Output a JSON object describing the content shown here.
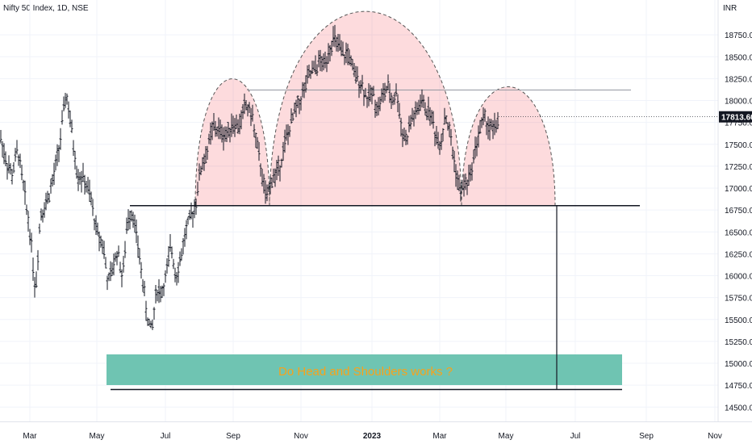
{
  "header": {
    "symbol_title": "Nifty 50 Index, 1D, NSE",
    "currency": "INR"
  },
  "last_price_label": "17813.60",
  "banner": {
    "text": "Do Head and Shoulders works ?"
  },
  "chart_data": {
    "type": "ohlc",
    "y_ticks": [
      14500,
      14750,
      15000,
      15250,
      15500,
      15750,
      16000,
      16250,
      16500,
      16750,
      17000,
      17250,
      17500,
      17750,
      18000,
      18250,
      18500,
      18750
    ],
    "y_tick_labels": [
      "14500.00",
      "14750.00",
      "15000.00",
      "15250.00",
      "15500.00",
      "15750.00",
      "16000.00",
      "16250.00",
      "16500.00",
      "16750.00",
      "17000.00",
      "17250.00",
      "17500.00",
      "17750.00",
      "18000.00",
      "18250.00",
      "18500.00",
      "18750.00"
    ],
    "x_tick_labels": [
      "Mar",
      "May",
      "Jul",
      "Sep",
      "Nov",
      "2023",
      "Mar",
      "May",
      "Jul",
      "Sep",
      "Nov"
    ],
    "x_tick_bold": [
      false,
      false,
      false,
      false,
      false,
      true,
      false,
      false,
      false,
      false,
      false
    ],
    "ylim": [
      14400,
      19050
    ],
    "last_price": 17813.6,
    "neckline": 16800,
    "head_level": 18120,
    "target_level": 14700,
    "price_path": [
      [
        0,
        17600
      ],
      [
        8,
        17300
      ],
      [
        15,
        17150
      ],
      [
        22,
        17450
      ],
      [
        30,
        16950
      ],
      [
        38,
        16450
      ],
      [
        44,
        15800
      ],
      [
        50,
        16700
      ],
      [
        58,
        16850
      ],
      [
        66,
        17100
      ],
      [
        74,
        17500
      ],
      [
        82,
        18100
      ],
      [
        88,
        17700
      ],
      [
        96,
        17150
      ],
      [
        104,
        17100
      ],
      [
        112,
        16900
      ],
      [
        120,
        16500
      ],
      [
        128,
        16350
      ],
      [
        134,
        15900
      ],
      [
        140,
        16100
      ],
      [
        146,
        16300
      ],
      [
        152,
        15950
      ],
      [
        158,
        16650
      ],
      [
        164,
        16750
      ],
      [
        170,
        16400
      ],
      [
        176,
        16000
      ],
      [
        182,
        15550
      ],
      [
        188,
        15350
      ],
      [
        194,
        15850
      ],
      [
        200,
        15800
      ],
      [
        206,
        16000
      ],
      [
        212,
        16350
      ],
      [
        218,
        16000
      ],
      [
        224,
        16200
      ],
      [
        230,
        16500
      ],
      [
        236,
        16650
      ],
      [
        242,
        16800
      ],
      [
        248,
        17200
      ],
      [
        256,
        17400
      ],
      [
        264,
        17700
      ],
      [
        272,
        17650
      ],
      [
        280,
        17600
      ],
      [
        288,
        17750
      ],
      [
        296,
        17700
      ],
      [
        304,
        17950
      ],
      [
        312,
        17850
      ],
      [
        318,
        17500
      ],
      [
        324,
        17200
      ],
      [
        330,
        16850
      ],
      [
        336,
        17100
      ],
      [
        342,
        17150
      ],
      [
        348,
        17300
      ],
      [
        354,
        17550
      ],
      [
        360,
        17700
      ],
      [
        366,
        17900
      ],
      [
        372,
        18000
      ],
      [
        378,
        18150
      ],
      [
        384,
        18300
      ],
      [
        390,
        18350
      ],
      [
        396,
        18450
      ],
      [
        402,
        18400
      ],
      [
        408,
        18600
      ],
      [
        414,
        18700
      ],
      [
        420,
        18600
      ],
      [
        426,
        18500
      ],
      [
        432,
        18550
      ],
      [
        438,
        18300
      ],
      [
        444,
        18250
      ],
      [
        450,
        18150
      ],
      [
        456,
        18000
      ],
      [
        462,
        18100
      ],
      [
        468,
        17900
      ],
      [
        474,
        18050
      ],
      [
        480,
        18150
      ],
      [
        486,
        18000
      ],
      [
        492,
        18100
      ],
      [
        498,
        17650
      ],
      [
        504,
        17550
      ],
      [
        510,
        17800
      ],
      [
        516,
        17850
      ],
      [
        522,
        18000
      ],
      [
        528,
        17900
      ],
      [
        534,
        17850
      ],
      [
        540,
        17600
      ],
      [
        546,
        17500
      ],
      [
        552,
        17850
      ],
      [
        558,
        17600
      ],
      [
        564,
        17250
      ],
      [
        570,
        16950
      ],
      [
        576,
        17050
      ],
      [
        582,
        17100
      ],
      [
        588,
        17400
      ],
      [
        594,
        17650
      ],
      [
        600,
        17800
      ],
      [
        606,
        17700
      ],
      [
        612,
        17650
      ],
      [
        618,
        17813.6
      ]
    ]
  }
}
